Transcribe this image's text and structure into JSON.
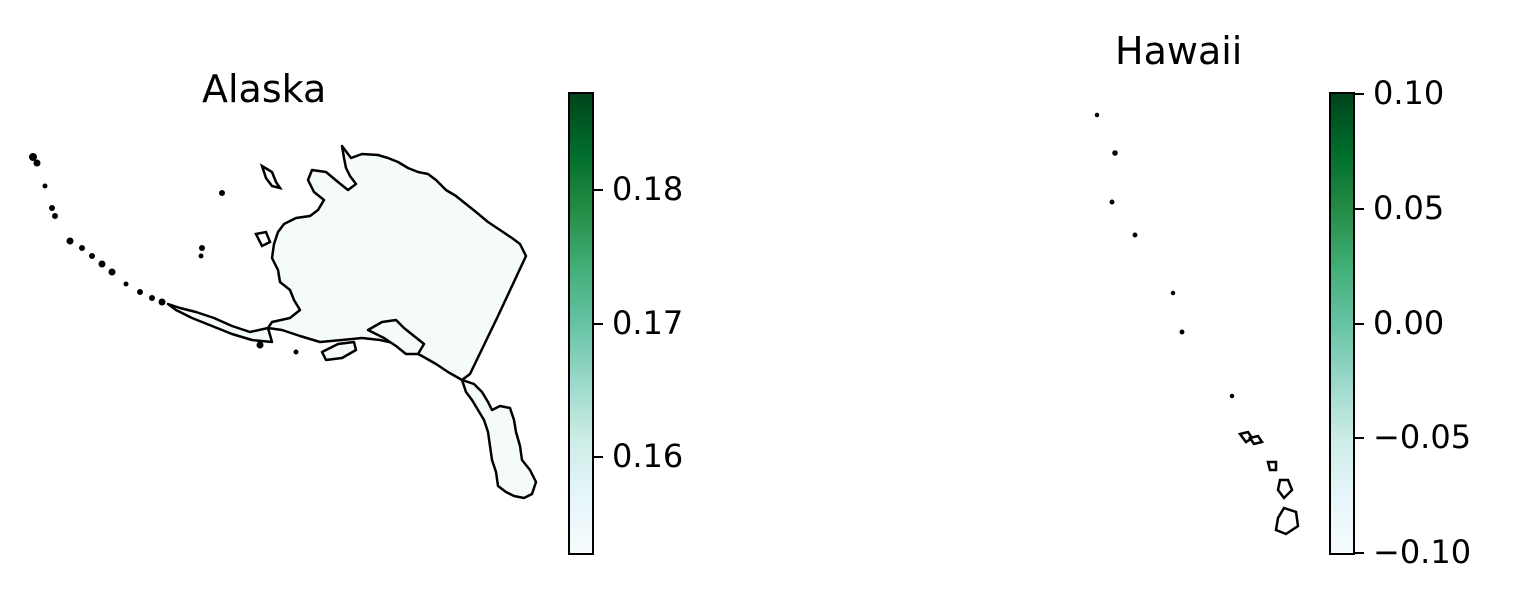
{
  "panels": [
    {
      "title": "Alaska",
      "colorbar": {
        "colormap": "BuGn",
        "range": [
          0.1528,
          0.1872
        ],
        "ticks": [
          {
            "value": 0.16,
            "label": "0.16"
          },
          {
            "value": 0.17,
            "label": "0.17"
          },
          {
            "value": 0.18,
            "label": "0.18"
          }
        ]
      },
      "fill_color": "#f5fbfb"
    },
    {
      "title": "Hawaii",
      "colorbar": {
        "colormap": "BuGn",
        "range": [
          -0.1,
          0.1
        ],
        "ticks": [
          {
            "value": -0.1,
            "label": "−0.10"
          },
          {
            "value": -0.05,
            "label": "−0.05"
          },
          {
            "value": 0.0,
            "label": "0.00"
          },
          {
            "value": 0.05,
            "label": "0.05"
          },
          {
            "value": 0.1,
            "label": "0.10"
          }
        ]
      },
      "fill_color": "#ffffff"
    }
  ],
  "colormap_stops": [
    "#f7fcfd",
    "#e5f5f9",
    "#ccece6",
    "#99d8c9",
    "#66c2a4",
    "#41ae76",
    "#238b45",
    "#006d2c",
    "#00441b"
  ]
}
